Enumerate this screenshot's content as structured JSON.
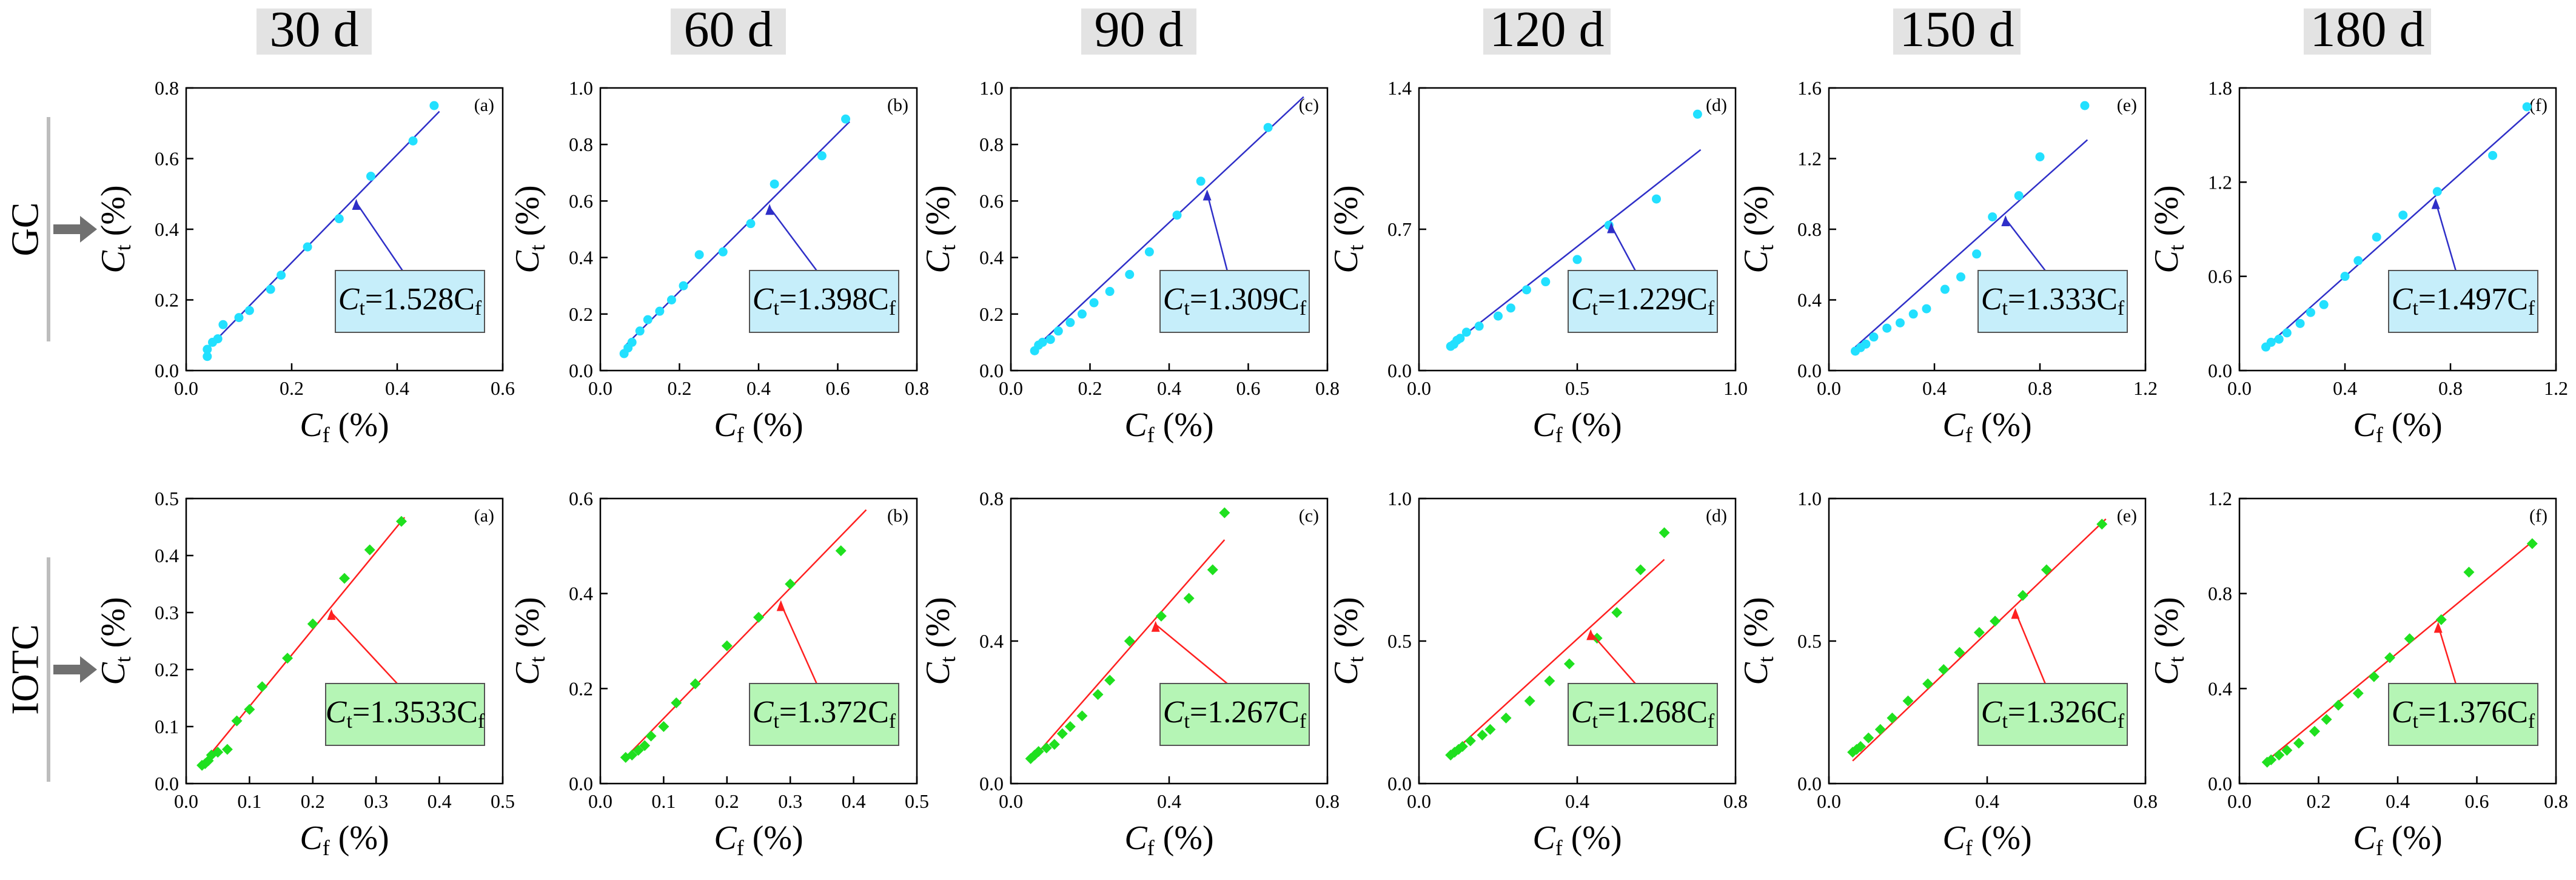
{
  "column_headers": [
    "30 d",
    "60 d",
    "90 d",
    "120 d",
    "150 d",
    "180 d"
  ],
  "row_labels": [
    "GC",
    "IOTC"
  ],
  "colors": {
    "gc_point": "#22e0ff",
    "gc_line": "#2f2fc8",
    "gc_box": "#c6eefa",
    "iotc_point": "#1fe01f",
    "iotc_line": "#ff2020",
    "iotc_box": "#b5f5b5",
    "header_bg": "#e3e3e3",
    "arrow": "#707070",
    "axis": "#000000"
  },
  "axis_text": {
    "xlabel_main": "C",
    "xlabel_sub": "f",
    "ylabel_main": "C",
    "ylabel_sub": "t",
    "unit": " (%)"
  },
  "chart_data": [
    {
      "type": "scatter",
      "row": "GC",
      "period": "30 d",
      "panel_label": "(a)",
      "eq_prefix": "C",
      "eq_sub1": "t",
      "eq_mid": "=1.528C",
      "eq_sub2": "f",
      "slope": 1.528,
      "xlim": [
        0,
        0.6
      ],
      "ylim": [
        0,
        0.8
      ],
      "xticks": [
        "0.0",
        "0.2",
        "0.4",
        "0.6"
      ],
      "yticks": [
        "0.0",
        "0.2",
        "0.4",
        "0.6",
        "0.8"
      ],
      "line_x": [
        0.04,
        0.48
      ],
      "x": [
        0.04,
        0.04,
        0.05,
        0.06,
        0.07,
        0.1,
        0.12,
        0.16,
        0.18,
        0.23,
        0.29,
        0.35,
        0.43,
        0.47
      ],
      "y": [
        0.04,
        0.06,
        0.08,
        0.09,
        0.13,
        0.15,
        0.17,
        0.23,
        0.27,
        0.35,
        0.43,
        0.55,
        0.65,
        0.75
      ]
    },
    {
      "type": "scatter",
      "row": "GC",
      "period": "60 d",
      "panel_label": "(b)",
      "eq_prefix": "C",
      "eq_sub1": "t",
      "eq_mid": "=1.398C",
      "eq_sub2": "f",
      "slope": 1.398,
      "xlim": [
        0,
        0.8
      ],
      "ylim": [
        0,
        1.0
      ],
      "xticks": [
        "0.0",
        "0.2",
        "0.4",
        "0.6",
        "0.8"
      ],
      "yticks": [
        "0.0",
        "0.2",
        "0.4",
        "0.6",
        "0.8",
        "1.0"
      ],
      "line_x": [
        0.06,
        0.63
      ],
      "x": [
        0.06,
        0.07,
        0.08,
        0.1,
        0.12,
        0.15,
        0.18,
        0.21,
        0.25,
        0.31,
        0.38,
        0.44,
        0.56,
        0.62
      ],
      "y": [
        0.06,
        0.08,
        0.1,
        0.14,
        0.18,
        0.21,
        0.25,
        0.3,
        0.41,
        0.42,
        0.52,
        0.66,
        0.76,
        0.89
      ]
    },
    {
      "type": "scatter",
      "row": "GC",
      "period": "90 d",
      "panel_label": "(c)",
      "eq_prefix": "C",
      "eq_sub1": "t",
      "eq_mid": "=1.309C",
      "eq_sub2": "f",
      "slope": 1.309,
      "xlim": [
        0,
        0.8
      ],
      "ylim": [
        0,
        1.0
      ],
      "xticks": [
        "0.0",
        "0.2",
        "0.4",
        "0.6",
        "0.8"
      ],
      "yticks": [
        "0.0",
        "0.2",
        "0.4",
        "0.6",
        "0.8",
        "1.0"
      ],
      "line_x": [
        0.06,
        0.74
      ],
      "x": [
        0.06,
        0.07,
        0.08,
        0.1,
        0.12,
        0.15,
        0.18,
        0.21,
        0.25,
        0.3,
        0.35,
        0.42,
        0.48,
        0.65
      ],
      "y": [
        0.07,
        0.09,
        0.1,
        0.11,
        0.14,
        0.17,
        0.2,
        0.24,
        0.28,
        0.34,
        0.42,
        0.55,
        0.67,
        0.86
      ]
    },
    {
      "type": "scatter",
      "row": "GC",
      "period": "120 d",
      "panel_label": "(d)",
      "eq_prefix": "C",
      "eq_sub1": "t",
      "eq_mid": "=1.229C",
      "eq_sub2": "f",
      "slope": 1.229,
      "xlim": [
        0,
        1.0
      ],
      "ylim": [
        0,
        1.4
      ],
      "xticks": [
        "0.0",
        "0.5",
        "1.0"
      ],
      "yticks": [
        "0.0",
        "0.7",
        "1.4"
      ],
      "line_x": [
        0.09,
        0.89
      ],
      "x": [
        0.1,
        0.11,
        0.12,
        0.13,
        0.15,
        0.19,
        0.25,
        0.29,
        0.34,
        0.4,
        0.5,
        0.6,
        0.75,
        0.88
      ],
      "y": [
        0.12,
        0.13,
        0.15,
        0.16,
        0.19,
        0.22,
        0.27,
        0.31,
        0.4,
        0.44,
        0.55,
        0.72,
        0.85,
        1.27
      ]
    },
    {
      "type": "scatter",
      "row": "GC",
      "period": "150 d",
      "panel_label": "(e)",
      "eq_prefix": "C",
      "eq_sub1": "t",
      "eq_mid": "=1.333C",
      "eq_sub2": "f",
      "slope": 1.333,
      "xlim": [
        0,
        1.2
      ],
      "ylim": [
        0,
        1.6
      ],
      "xticks": [
        "0.0",
        "0.4",
        "0.8",
        "1.2"
      ],
      "yticks": [
        "0.0",
        "0.4",
        "0.8",
        "1.2",
        "1.6"
      ],
      "line_x": [
        0.1,
        0.98
      ],
      "x": [
        0.1,
        0.12,
        0.14,
        0.17,
        0.22,
        0.27,
        0.32,
        0.37,
        0.44,
        0.5,
        0.56,
        0.62,
        0.72,
        0.8,
        0.97
      ],
      "y": [
        0.11,
        0.13,
        0.15,
        0.19,
        0.24,
        0.27,
        0.32,
        0.35,
        0.46,
        0.53,
        0.66,
        0.87,
        0.99,
        1.21,
        1.5
      ]
    },
    {
      "type": "scatter",
      "row": "GC",
      "period": "180 d",
      "panel_label": "(f)",
      "eq_prefix": "C",
      "eq_sub1": "t",
      "eq_mid": "=1.497C",
      "eq_sub2": "f",
      "slope": 1.497,
      "xlim": [
        0,
        1.2
      ],
      "ylim": [
        0,
        1.8
      ],
      "xticks": [
        "0.0",
        "0.4",
        "0.8",
        "1.2"
      ],
      "yticks": [
        "0.0",
        "0.6",
        "1.2",
        "1.8"
      ],
      "line_x": [
        0.1,
        1.1
      ],
      "x": [
        0.1,
        0.12,
        0.15,
        0.18,
        0.23,
        0.27,
        0.32,
        0.4,
        0.45,
        0.52,
        0.62,
        0.75,
        0.96,
        1.09
      ],
      "y": [
        0.15,
        0.18,
        0.2,
        0.24,
        0.3,
        0.37,
        0.42,
        0.6,
        0.7,
        0.85,
        0.99,
        1.14,
        1.37,
        1.68
      ]
    },
    {
      "type": "scatter",
      "row": "IOTC",
      "period": "30 d",
      "panel_label": "(a)",
      "eq_prefix": "C",
      "eq_sub1": "t",
      "eq_mid": "=1.3533C",
      "eq_sub2": "f",
      "slope": 1.3533,
      "xlim": [
        0,
        0.5
      ],
      "ylim": [
        0,
        0.5
      ],
      "xticks": [
        "0.0",
        "0.1",
        "0.2",
        "0.3",
        "0.4",
        "0.5"
      ],
      "yticks": [
        "0.0",
        "0.1",
        "0.2",
        "0.3",
        "0.4",
        "0.5"
      ],
      "line_x": [
        0.025,
        0.345
      ],
      "x": [
        0.025,
        0.03,
        0.035,
        0.04,
        0.05,
        0.065,
        0.08,
        0.1,
        0.12,
        0.16,
        0.2,
        0.25,
        0.29,
        0.34
      ],
      "y": [
        0.032,
        0.035,
        0.04,
        0.05,
        0.055,
        0.06,
        0.11,
        0.13,
        0.17,
        0.22,
        0.28,
        0.36,
        0.41,
        0.46
      ]
    },
    {
      "type": "scatter",
      "row": "IOTC",
      "period": "60 d",
      "panel_label": "(b)",
      "eq_prefix": "C",
      "eq_sub1": "t",
      "eq_mid": "=1.372C",
      "eq_sub2": "f",
      "slope": 1.372,
      "xlim": [
        0,
        0.5
      ],
      "ylim": [
        0,
        0.6
      ],
      "xticks": [
        "0.0",
        "0.1",
        "0.2",
        "0.3",
        "0.4",
        "0.5"
      ],
      "yticks": [
        "0.0",
        "0.2",
        "0.4",
        "0.6"
      ],
      "line_x": [
        0.04,
        0.42
      ],
      "x": [
        0.04,
        0.05,
        0.06,
        0.07,
        0.08,
        0.1,
        0.12,
        0.15,
        0.2,
        0.25,
        0.3,
        0.38
      ],
      "y": [
        0.055,
        0.06,
        0.07,
        0.08,
        0.1,
        0.12,
        0.17,
        0.21,
        0.29,
        0.35,
        0.42,
        0.49
      ]
    },
    {
      "type": "scatter",
      "row": "IOTC",
      "period": "90 d",
      "panel_label": "(c)",
      "eq_prefix": "C",
      "eq_sub1": "t",
      "eq_mid": "=1.267C",
      "eq_sub2": "f",
      "slope": 1.267,
      "xlim": [
        0,
        0.8
      ],
      "ylim": [
        0,
        0.8
      ],
      "xticks": [
        "0.0",
        "0.4",
        "0.8"
      ],
      "yticks": [
        "0.0",
        "0.4",
        "0.8"
      ],
      "line_x": [
        0.05,
        0.54
      ],
      "x": [
        0.05,
        0.06,
        0.07,
        0.09,
        0.11,
        0.13,
        0.15,
        0.18,
        0.22,
        0.25,
        0.3,
        0.38,
        0.45,
        0.51,
        0.54
      ],
      "y": [
        0.07,
        0.08,
        0.09,
        0.1,
        0.11,
        0.14,
        0.16,
        0.19,
        0.25,
        0.29,
        0.4,
        0.47,
        0.52,
        0.6,
        0.76
      ]
    },
    {
      "type": "scatter",
      "row": "IOTC",
      "period": "120 d",
      "panel_label": "(d)",
      "eq_prefix": "C",
      "eq_sub1": "t",
      "eq_mid": "=1.268C",
      "eq_sub2": "f",
      "slope": 1.268,
      "xlim": [
        0,
        0.8
      ],
      "ylim": [
        0,
        1.0
      ],
      "xticks": [
        "0.0",
        "0.4",
        "0.8"
      ],
      "yticks": [
        "0.0",
        "0.5",
        "1.0"
      ],
      "line_x": [
        0.08,
        0.62
      ],
      "x": [
        0.08,
        0.09,
        0.1,
        0.11,
        0.13,
        0.16,
        0.18,
        0.22,
        0.28,
        0.33,
        0.38,
        0.45,
        0.5,
        0.56,
        0.62
      ],
      "y": [
        0.1,
        0.11,
        0.12,
        0.13,
        0.15,
        0.17,
        0.19,
        0.23,
        0.29,
        0.36,
        0.42,
        0.51,
        0.6,
        0.75,
        0.88
      ]
    },
    {
      "type": "scatter",
      "row": "IOTC",
      "period": "150 d",
      "panel_label": "(e)",
      "eq_prefix": "C",
      "eq_sub1": "t",
      "eq_mid": "=1.326C",
      "eq_sub2": "f",
      "slope": 1.326,
      "xlim": [
        0,
        0.8
      ],
      "ylim": [
        0,
        1.0
      ],
      "xticks": [
        "0.0",
        "0.4",
        "0.8"
      ],
      "yticks": [
        "0.0",
        "0.5",
        "1.0"
      ],
      "line_x": [
        0.06,
        0.7
      ],
      "x": [
        0.06,
        0.07,
        0.08,
        0.1,
        0.13,
        0.16,
        0.2,
        0.25,
        0.29,
        0.33,
        0.38,
        0.42,
        0.49,
        0.55,
        0.69
      ],
      "y": [
        0.11,
        0.12,
        0.13,
        0.16,
        0.19,
        0.23,
        0.29,
        0.35,
        0.4,
        0.46,
        0.53,
        0.57,
        0.66,
        0.75,
        0.91
      ]
    },
    {
      "type": "scatter",
      "row": "IOTC",
      "period": "180 d",
      "panel_label": "(f)",
      "eq_prefix": "C",
      "eq_sub1": "t",
      "eq_mid": "=1.376C",
      "eq_sub2": "f",
      "slope": 1.376,
      "xlim": [
        0,
        0.8
      ],
      "ylim": [
        0,
        1.2
      ],
      "xticks": [
        "0.0",
        "0.2",
        "0.4",
        "0.6",
        "0.8"
      ],
      "yticks": [
        "0.0",
        "0.4",
        "0.8",
        "1.2"
      ],
      "line_x": [
        0.07,
        0.74
      ],
      "x": [
        0.07,
        0.08,
        0.1,
        0.12,
        0.15,
        0.19,
        0.22,
        0.25,
        0.3,
        0.34,
        0.38,
        0.43,
        0.51,
        0.58,
        0.74
      ],
      "y": [
        0.09,
        0.1,
        0.12,
        0.14,
        0.17,
        0.22,
        0.27,
        0.33,
        0.38,
        0.45,
        0.53,
        0.61,
        0.69,
        0.89,
        1.01
      ]
    }
  ]
}
